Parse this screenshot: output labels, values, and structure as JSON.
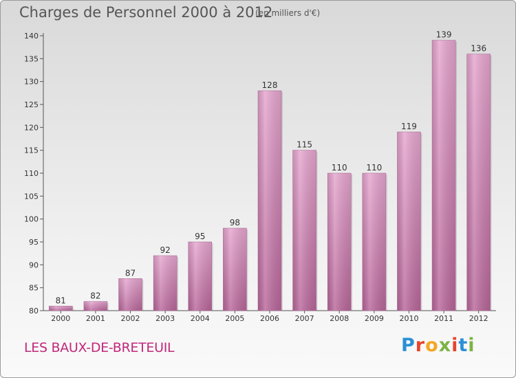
{
  "chart_data": {
    "type": "bar",
    "title": "Charges de Personnel 2000 à 2012",
    "subtitle": "(en milliers d'€)",
    "categories": [
      "2000",
      "2001",
      "2002",
      "2003",
      "2004",
      "2005",
      "2006",
      "2007",
      "2008",
      "2009",
      "2010",
      "2011",
      "2012"
    ],
    "values": [
      81,
      82,
      87,
      92,
      95,
      98,
      128,
      115,
      110,
      110,
      119,
      139,
      136
    ],
    "ylim": [
      80,
      140
    ],
    "yticks": [
      80,
      85,
      90,
      95,
      100,
      105,
      110,
      115,
      120,
      125,
      130,
      135,
      140
    ],
    "grid": false,
    "bar_color": "#d98fbd"
  },
  "footer": {
    "commune": "LES BAUX-DE-BRETEUIL",
    "logo_letters": [
      "P",
      "r",
      "o",
      "x",
      "i",
      "t",
      "i"
    ],
    "logo_colors": [
      "#2a8fd6",
      "#e8432d",
      "#f5a623",
      "#7cb342",
      "#e8432d",
      "#2a8fd6",
      "#7cb342"
    ]
  }
}
